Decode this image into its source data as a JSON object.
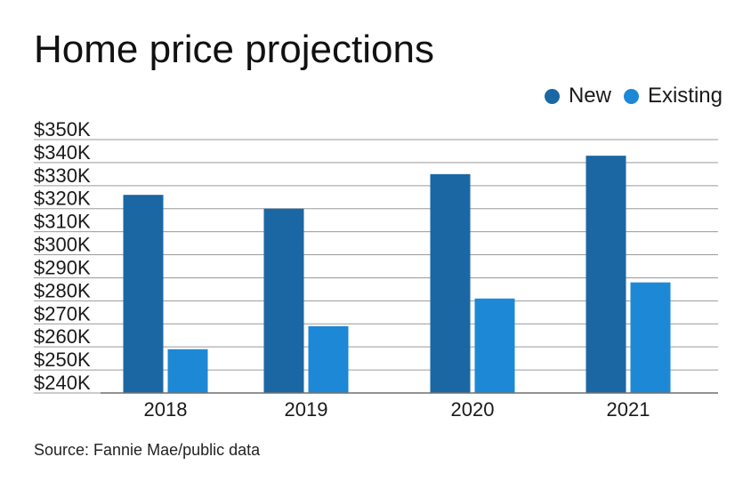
{
  "chart_data": {
    "type": "bar",
    "title": "Home price projections",
    "categories": [
      "2018",
      "2019",
      "2020",
      "2021"
    ],
    "series": [
      {
        "name": "New",
        "color": "#1b67a3",
        "values": [
          326,
          320,
          335,
          343
        ]
      },
      {
        "name": "Existing",
        "color": "#1d88d5",
        "values": [
          259,
          269,
          281,
          288
        ]
      }
    ],
    "y_ticks": [
      "$240K",
      "$250K",
      "$260K",
      "$270K",
      "$280K",
      "$290K",
      "$300K",
      "$310K",
      "$320K",
      "$330K",
      "$340K",
      "$350K"
    ],
    "ylim": [
      240,
      350
    ],
    "y_unit": "thousands of dollars",
    "xlabel": "",
    "ylabel": "",
    "grid": true,
    "legend_position": "top-right",
    "source": "Source: Fannie Mae/public data"
  }
}
